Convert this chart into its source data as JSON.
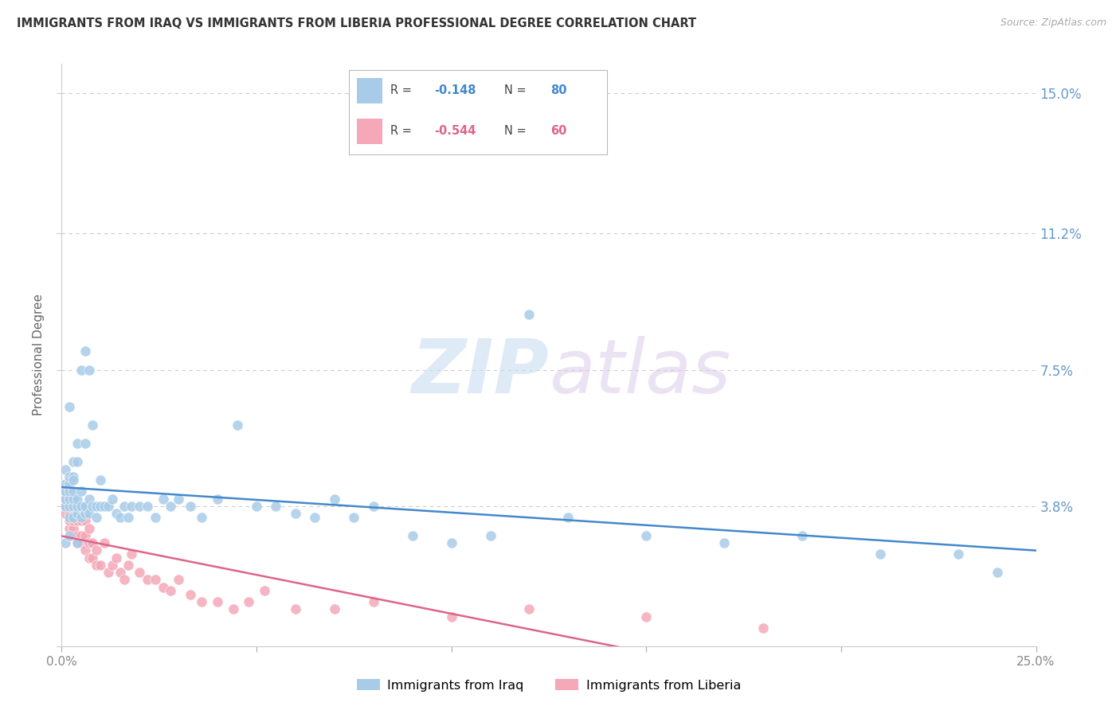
{
  "title": "IMMIGRANTS FROM IRAQ VS IMMIGRANTS FROM LIBERIA PROFESSIONAL DEGREE CORRELATION CHART",
  "source": "Source: ZipAtlas.com",
  "ylabel": "Professional Degree",
  "y_ticks": [
    0.0,
    0.038,
    0.075,
    0.112,
    0.15
  ],
  "y_tick_labels": [
    "",
    "3.8%",
    "7.5%",
    "11.2%",
    "15.0%"
  ],
  "x_lim": [
    0.0,
    0.25
  ],
  "y_lim": [
    0.0,
    0.158
  ],
  "iraq_R": -0.148,
  "iraq_N": 80,
  "liberia_R": -0.544,
  "liberia_N": 60,
  "iraq_color": "#a8cce8",
  "liberia_color": "#f4a8b8",
  "iraq_line_color": "#4488cc",
  "liberia_line_color": "#dd6688",
  "background": "#ffffff",
  "grid_color": "#cccccc",
  "right_tick_color": "#6699cc",
  "iraq_x": [
    0.001,
    0.001,
    0.001,
    0.001,
    0.001,
    0.002,
    0.002,
    0.002,
    0.002,
    0.002,
    0.002,
    0.002,
    0.003,
    0.003,
    0.003,
    0.003,
    0.003,
    0.003,
    0.004,
    0.004,
    0.004,
    0.004,
    0.004,
    0.005,
    0.005,
    0.005,
    0.005,
    0.006,
    0.006,
    0.006,
    0.006,
    0.007,
    0.007,
    0.007,
    0.008,
    0.008,
    0.009,
    0.009,
    0.01,
    0.01,
    0.011,
    0.012,
    0.013,
    0.014,
    0.015,
    0.016,
    0.017,
    0.018,
    0.02,
    0.022,
    0.024,
    0.026,
    0.028,
    0.03,
    0.033,
    0.036,
    0.04,
    0.045,
    0.05,
    0.055,
    0.06,
    0.065,
    0.07,
    0.075,
    0.08,
    0.09,
    0.1,
    0.11,
    0.12,
    0.13,
    0.15,
    0.17,
    0.19,
    0.21,
    0.23,
    0.24,
    0.001,
    0.002,
    0.003,
    0.004
  ],
  "iraq_y": [
    0.038,
    0.04,
    0.042,
    0.044,
    0.048,
    0.035,
    0.038,
    0.04,
    0.042,
    0.044,
    0.046,
    0.065,
    0.035,
    0.038,
    0.04,
    0.042,
    0.046,
    0.05,
    0.036,
    0.038,
    0.04,
    0.05,
    0.055,
    0.035,
    0.038,
    0.042,
    0.075,
    0.036,
    0.038,
    0.055,
    0.08,
    0.036,
    0.04,
    0.075,
    0.038,
    0.06,
    0.035,
    0.038,
    0.038,
    0.045,
    0.038,
    0.038,
    0.04,
    0.036,
    0.035,
    0.038,
    0.035,
    0.038,
    0.038,
    0.038,
    0.035,
    0.04,
    0.038,
    0.04,
    0.038,
    0.035,
    0.04,
    0.06,
    0.038,
    0.038,
    0.036,
    0.035,
    0.04,
    0.035,
    0.038,
    0.03,
    0.028,
    0.03,
    0.09,
    0.035,
    0.03,
    0.028,
    0.03,
    0.025,
    0.025,
    0.02,
    0.028,
    0.03,
    0.045,
    0.028
  ],
  "liberia_x": [
    0.001,
    0.001,
    0.001,
    0.001,
    0.002,
    0.002,
    0.002,
    0.002,
    0.002,
    0.003,
    0.003,
    0.003,
    0.003,
    0.003,
    0.004,
    0.004,
    0.004,
    0.004,
    0.005,
    0.005,
    0.005,
    0.005,
    0.006,
    0.006,
    0.006,
    0.007,
    0.007,
    0.007,
    0.008,
    0.008,
    0.009,
    0.009,
    0.01,
    0.011,
    0.012,
    0.013,
    0.014,
    0.015,
    0.016,
    0.017,
    0.018,
    0.02,
    0.022,
    0.024,
    0.026,
    0.028,
    0.03,
    0.033,
    0.036,
    0.04,
    0.044,
    0.048,
    0.052,
    0.06,
    0.07,
    0.08,
    0.1,
    0.12,
    0.15,
    0.18
  ],
  "liberia_y": [
    0.036,
    0.038,
    0.04,
    0.042,
    0.032,
    0.034,
    0.036,
    0.04,
    0.044,
    0.03,
    0.032,
    0.034,
    0.036,
    0.04,
    0.028,
    0.03,
    0.034,
    0.038,
    0.028,
    0.03,
    0.034,
    0.038,
    0.026,
    0.03,
    0.034,
    0.024,
    0.028,
    0.032,
    0.024,
    0.028,
    0.022,
    0.026,
    0.022,
    0.028,
    0.02,
    0.022,
    0.024,
    0.02,
    0.018,
    0.022,
    0.025,
    0.02,
    0.018,
    0.018,
    0.016,
    0.015,
    0.018,
    0.014,
    0.012,
    0.012,
    0.01,
    0.012,
    0.015,
    0.01,
    0.01,
    0.012,
    0.008,
    0.01,
    0.008,
    0.005
  ]
}
